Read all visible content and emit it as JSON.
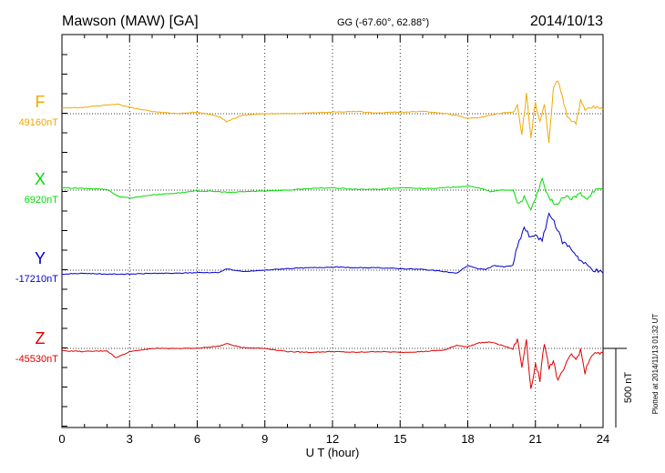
{
  "header": {
    "station": "Mawson (MAW)  [GA]",
    "coords": "GG (-67.60°,  62.88°)",
    "date": "2014/10/13"
  },
  "plotted_note": "Plotted at 2014/11/13 01:32 UT",
  "scale_label": "500 nT",
  "colors": {
    "F": "#f2a900",
    "X": "#00dd00",
    "Y": "#0000cc",
    "Z": "#dd0000"
  },
  "chart_data": {
    "type": "line",
    "title": "Mawson (MAW)  [GA]",
    "xlabel": "U T (hour)",
    "xlim": [
      0,
      24
    ],
    "x_ticks": [
      0,
      3,
      6,
      9,
      12,
      15,
      18,
      21,
      24
    ],
    "scale_bar_nT": 500,
    "grid": true,
    "series": [
      {
        "name": "F",
        "baseline_label": "49160nT",
        "baseline_nT": 49160,
        "points": [
          [
            0,
            35
          ],
          [
            1,
            40
          ],
          [
            2,
            55
          ],
          [
            2.5,
            60
          ],
          [
            3,
            40
          ],
          [
            4,
            15
          ],
          [
            5,
            0
          ],
          [
            6,
            10
          ],
          [
            7,
            -20
          ],
          [
            7.3,
            -50
          ],
          [
            8,
            -10
          ],
          [
            9,
            0
          ],
          [
            10,
            0
          ],
          [
            11,
            5
          ],
          [
            12,
            10
          ],
          [
            13,
            15
          ],
          [
            14,
            5
          ],
          [
            15,
            10
          ],
          [
            16,
            15
          ],
          [
            17,
            0
          ],
          [
            17.5,
            -10
          ],
          [
            18,
            -30
          ],
          [
            18.5,
            -25
          ],
          [
            19,
            -10
          ],
          [
            19.5,
            5
          ],
          [
            20,
            10
          ],
          [
            20.2,
            60
          ],
          [
            20.4,
            -130
          ],
          [
            20.6,
            120
          ],
          [
            20.8,
            -150
          ],
          [
            21,
            80
          ],
          [
            21.2,
            -60
          ],
          [
            21.4,
            50
          ],
          [
            21.6,
            -180
          ],
          [
            21.8,
            150
          ],
          [
            22,
            220
          ],
          [
            22.2,
            100
          ],
          [
            22.4,
            -10
          ],
          [
            22.6,
            -40
          ],
          [
            22.8,
            -60
          ],
          [
            23,
            80
          ],
          [
            23.2,
            20
          ],
          [
            23.5,
            40
          ],
          [
            24,
            30
          ]
        ]
      },
      {
        "name": "X",
        "baseline_label": "6920nT",
        "baseline_nT": 6920,
        "points": [
          [
            0,
            15
          ],
          [
            1,
            10
          ],
          [
            2,
            5
          ],
          [
            2.5,
            -40
          ],
          [
            3,
            -50
          ],
          [
            4,
            -30
          ],
          [
            5,
            -20
          ],
          [
            6,
            -5
          ],
          [
            7,
            -10
          ],
          [
            7.5,
            -15
          ],
          [
            8,
            -10
          ],
          [
            9,
            -5
          ],
          [
            10,
            0
          ],
          [
            11,
            10
          ],
          [
            12,
            15
          ],
          [
            13,
            5
          ],
          [
            14,
            5
          ],
          [
            15,
            15
          ],
          [
            16,
            10
          ],
          [
            17,
            15
          ],
          [
            18,
            25
          ],
          [
            18.5,
            15
          ],
          [
            19,
            -10
          ],
          [
            19.5,
            0
          ],
          [
            20,
            0
          ],
          [
            20.2,
            -80
          ],
          [
            20.5,
            -50
          ],
          [
            20.8,
            -130
          ],
          [
            21,
            -50
          ],
          [
            21.3,
            60
          ],
          [
            21.6,
            -60
          ],
          [
            22,
            -90
          ],
          [
            22.3,
            -40
          ],
          [
            22.6,
            -60
          ],
          [
            23,
            -20
          ],
          [
            23.3,
            -50
          ],
          [
            23.6,
            0
          ],
          [
            24,
            0
          ]
        ]
      },
      {
        "name": "Y",
        "baseline_label": "-17210nT",
        "baseline_nT": -17210,
        "points": [
          [
            0,
            -25
          ],
          [
            1,
            -20
          ],
          [
            2,
            -25
          ],
          [
            3,
            -25
          ],
          [
            4,
            -20
          ],
          [
            5,
            -20
          ],
          [
            6,
            -15
          ],
          [
            7,
            -15
          ],
          [
            7.3,
            10
          ],
          [
            8,
            -10
          ],
          [
            9,
            0
          ],
          [
            10,
            10
          ],
          [
            11,
            15
          ],
          [
            12,
            20
          ],
          [
            13,
            15
          ],
          [
            14,
            15
          ],
          [
            15,
            10
          ],
          [
            16,
            5
          ],
          [
            17,
            -10
          ],
          [
            17.5,
            -20
          ],
          [
            18,
            30
          ],
          [
            18.4,
            10
          ],
          [
            18.8,
            5
          ],
          [
            19.2,
            30
          ],
          [
            19.6,
            20
          ],
          [
            20,
            30
          ],
          [
            20.2,
            150
          ],
          [
            20.5,
            270
          ],
          [
            20.8,
            200
          ],
          [
            21,
            230
          ],
          [
            21.3,
            180
          ],
          [
            21.6,
            360
          ],
          [
            21.9,
            280
          ],
          [
            22.2,
            180
          ],
          [
            22.5,
            150
          ],
          [
            22.8,
            100
          ],
          [
            23,
            60
          ],
          [
            23.5,
            10
          ],
          [
            24,
            -20
          ]
        ]
      },
      {
        "name": "Z",
        "baseline_label": "-45530nT",
        "baseline_nT": -45530,
        "points": [
          [
            0,
            -15
          ],
          [
            1,
            -20
          ],
          [
            2,
            -15
          ],
          [
            2.4,
            -60
          ],
          [
            3,
            -20
          ],
          [
            4,
            0
          ],
          [
            5,
            0
          ],
          [
            6,
            0
          ],
          [
            7,
            15
          ],
          [
            7.3,
            30
          ],
          [
            8,
            5
          ],
          [
            9,
            0
          ],
          [
            10,
            -20
          ],
          [
            11,
            -25
          ],
          [
            12,
            -20
          ],
          [
            13,
            -25
          ],
          [
            14,
            -20
          ],
          [
            15,
            -25
          ],
          [
            16,
            -20
          ],
          [
            17,
            -10
          ],
          [
            17.5,
            20
          ],
          [
            18,
            10
          ],
          [
            18.5,
            35
          ],
          [
            19,
            40
          ],
          [
            19.5,
            20
          ],
          [
            20,
            -5
          ],
          [
            20.2,
            60
          ],
          [
            20.4,
            -120
          ],
          [
            20.6,
            60
          ],
          [
            20.8,
            -260
          ],
          [
            21,
            -100
          ],
          [
            21.2,
            -200
          ],
          [
            21.4,
            40
          ],
          [
            21.6,
            -120
          ],
          [
            21.8,
            -80
          ],
          [
            22,
            -210
          ],
          [
            22.3,
            -120
          ],
          [
            22.6,
            -40
          ],
          [
            22.8,
            -70
          ],
          [
            23,
            -10
          ],
          [
            23.2,
            -150
          ],
          [
            23.5,
            -40
          ],
          [
            24,
            -30
          ]
        ]
      }
    ]
  }
}
